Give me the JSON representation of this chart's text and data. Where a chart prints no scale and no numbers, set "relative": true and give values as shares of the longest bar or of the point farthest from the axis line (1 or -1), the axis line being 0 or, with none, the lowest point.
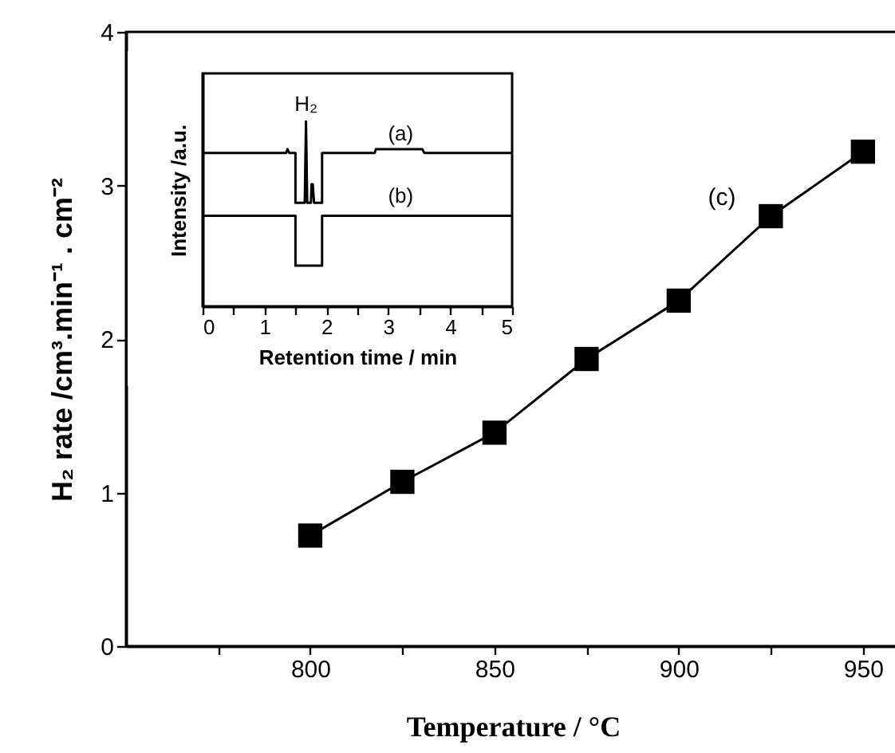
{
  "chart_data": [
    {
      "type": "line",
      "xlabel": "Temperature / °C",
      "ylabel": "H₂ rate /cm³.min⁻¹ . cm⁻²",
      "x": [
        800,
        825,
        850,
        875,
        900,
        925,
        950
      ],
      "series": [
        {
          "color": "#000000",
          "values": [
            0.72,
            1.07,
            1.39,
            1.87,
            2.25,
            2.8,
            3.22
          ]
        }
      ],
      "xlim": [
        750,
        960
      ],
      "xticks": [
        {
          "value": 775,
          "label": null
        },
        800,
        {
          "value": 825,
          "label": null
        },
        850,
        {
          "value": 875,
          "label": null
        },
        900,
        {
          "value": 925,
          "label": null
        },
        950
      ],
      "ylim": [
        0,
        4
      ],
      "yticks": [
        0,
        1,
        2,
        3,
        4
      ],
      "marker": "square",
      "line_style": "solid",
      "grid": false,
      "annotations": [
        "(c)"
      ]
    },
    {
      "type": "line",
      "relative": true,
      "xlabel": "Retention time / min",
      "ylabel": "Intensity /a.u.",
      "tick_labels": "x",
      "series": [
        {
          "name": "(a)",
          "color": "#000000",
          "x": [
            0,
            1.35,
            1.37,
            1.4,
            1.5,
            1.5,
            1.63,
            1.65,
            1.67,
            1.69,
            1.71,
            1.75,
            1.76,
            1.78,
            1.8,
            1.93,
            1.93,
            2.78,
            2.8,
            3.55,
            3.58,
            5
          ],
          "values": [
            0.83,
            0.83,
            0.85,
            0.83,
            0.83,
            0.56,
            0.56,
            0.56,
            1.0,
            0.56,
            0.56,
            0.56,
            0.66,
            0.66,
            0.56,
            0.56,
            0.83,
            0.83,
            0.85,
            0.85,
            0.83,
            0.83
          ]
        },
        {
          "name": "(b)",
          "color": "#000000",
          "x": [
            0,
            1.5,
            1.5,
            1.93,
            1.93,
            5
          ],
          "values": [
            0.49,
            0.49,
            0.22,
            0.22,
            0.49,
            0.49
          ]
        }
      ],
      "xlim": [
        0,
        5
      ],
      "xticks": [
        0,
        {
          "value": 0.5,
          "label": null
        },
        1,
        {
          "value": 1.5,
          "label": null
        },
        2,
        {
          "value": 2.5,
          "label": null
        },
        3,
        {
          "value": 3.5,
          "label": null
        },
        4,
        {
          "value": 4.5,
          "label": null
        },
        5
      ],
      "marker": "none",
      "line_style": "solid",
      "grid": false,
      "annotations": [
        {
          "text": "H₂",
          "x": 1.67,
          "y": 1.03
        }
      ]
    }
  ]
}
